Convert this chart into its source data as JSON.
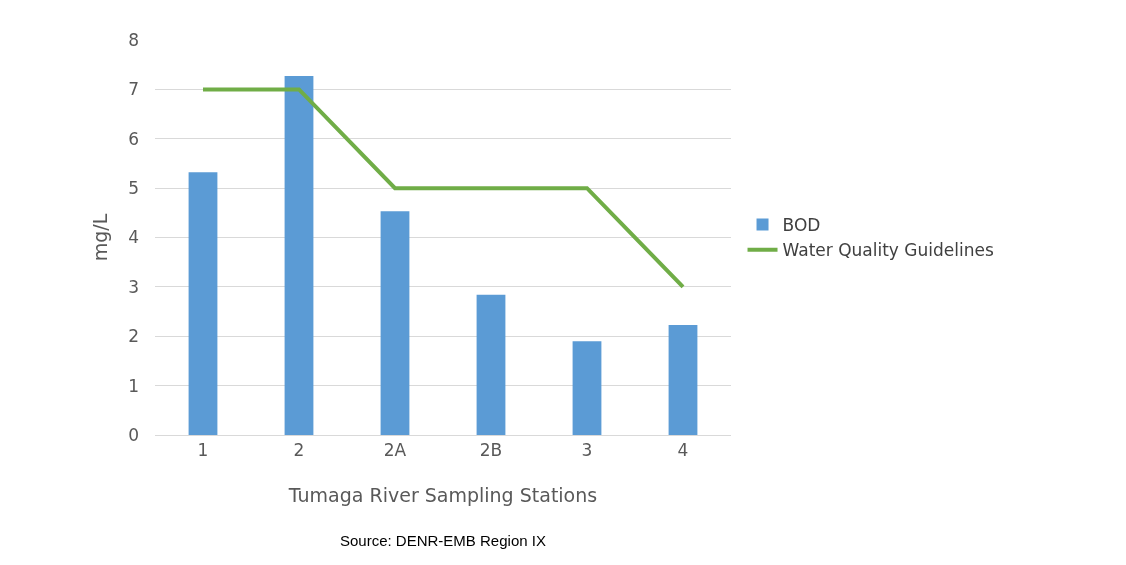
{
  "chart_data": {
    "type": "bar",
    "xlabel": "Tumaga River Sampling Stations",
    "ylabel": "mg/L",
    "categories": [
      "1",
      "2",
      "2A",
      "2B",
      "3",
      "4"
    ],
    "series": [
      {
        "name": "BOD",
        "color": "#5b9bd5",
        "values": [
          5.32,
          7.27,
          4.53,
          2.84,
          1.9,
          2.23
        ]
      },
      {
        "name": "Water Quality Guidelines",
        "type": "line",
        "color": "#70ad47",
        "values": [
          7,
          7,
          5,
          5,
          5,
          3
        ]
      }
    ],
    "ylim": [
      0,
      8
    ],
    "yticks": [
      0,
      1,
      2,
      3,
      4,
      5,
      6,
      7,
      8
    ],
    "grid": "y",
    "legend": "right",
    "marker": "none",
    "annotations": [
      "Source: DENR-EMB Region IX"
    ]
  }
}
